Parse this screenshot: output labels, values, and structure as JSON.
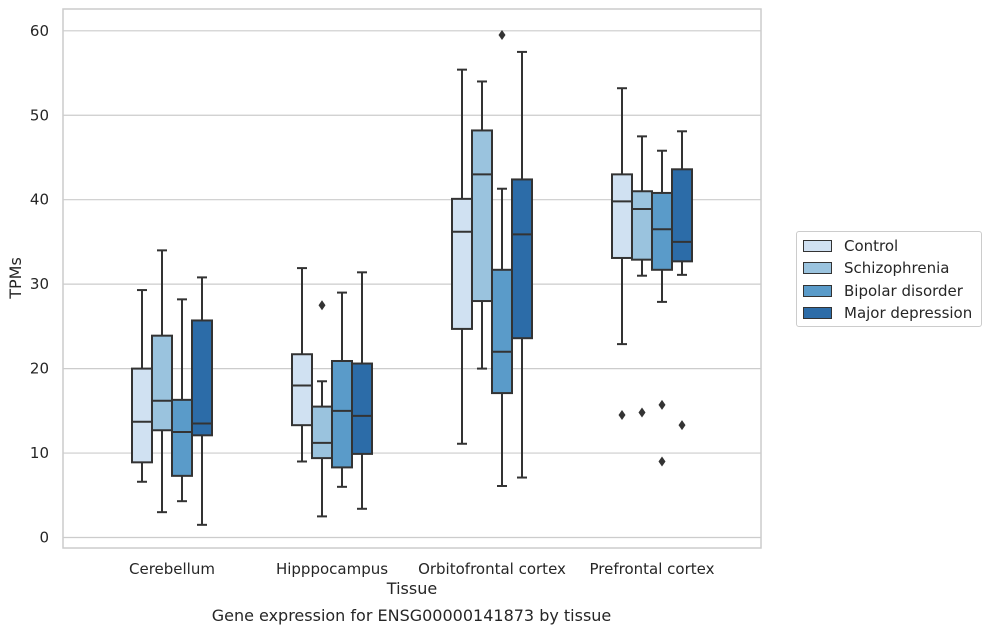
{
  "caption": "Gene expression for ENSG00000141873 by tissue",
  "chart_data": {
    "type": "box",
    "xlabel": "Tissue",
    "ylabel": "TPMs",
    "ylim": [
      -1.2,
      62.5
    ],
    "yticks": [
      0,
      10,
      20,
      30,
      40,
      50,
      60
    ],
    "grid": "horizontal",
    "legend_position": "right",
    "categories": [
      "Cerebellum",
      "Hipppocampus",
      "Orbitofrontal cortex",
      "Prefrontal cortex"
    ],
    "series": [
      {
        "name": "Control",
        "color": "#d0e1f2",
        "boxes": [
          {
            "whislo": 6.6,
            "q1": 8.9,
            "med": 13.7,
            "q3": 20.0,
            "whishi": 29.3,
            "fliers": []
          },
          {
            "whislo": 9.0,
            "q1": 13.3,
            "med": 18.0,
            "q3": 21.7,
            "whishi": 31.9,
            "fliers": []
          },
          {
            "whislo": 11.1,
            "q1": 24.7,
            "med": 36.2,
            "q3": 40.1,
            "whishi": 55.4,
            "fliers": []
          },
          {
            "whislo": 22.9,
            "q1": 33.1,
            "med": 39.8,
            "q3": 43.0,
            "whishi": 53.2,
            "fliers": [
              14.5
            ]
          }
        ]
      },
      {
        "name": "Schizophrenia",
        "color": "#9ac3de",
        "boxes": [
          {
            "whislo": 3.0,
            "q1": 12.7,
            "med": 16.2,
            "q3": 23.9,
            "whishi": 34.0,
            "fliers": []
          },
          {
            "whislo": 2.5,
            "q1": 9.4,
            "med": 11.2,
            "q3": 15.5,
            "whishi": 18.5,
            "fliers": [
              27.5
            ]
          },
          {
            "whislo": 20.0,
            "q1": 28.0,
            "med": 43.0,
            "q3": 48.2,
            "whishi": 54.0,
            "fliers": []
          },
          {
            "whislo": 31.0,
            "q1": 32.9,
            "med": 38.9,
            "q3": 41.0,
            "whishi": 47.5,
            "fliers": [
              14.8
            ]
          }
        ]
      },
      {
        "name": "Bipolar disorder",
        "color": "#5a9bc9",
        "boxes": [
          {
            "whislo": 4.3,
            "q1": 7.3,
            "med": 12.5,
            "q3": 16.3,
            "whishi": 28.2,
            "fliers": []
          },
          {
            "whislo": 6.0,
            "q1": 8.3,
            "med": 15.0,
            "q3": 20.9,
            "whishi": 29.0,
            "fliers": []
          },
          {
            "whislo": 6.1,
            "q1": 17.1,
            "med": 22.0,
            "q3": 31.7,
            "whishi": 41.3,
            "fliers": [
              59.5
            ]
          },
          {
            "whislo": 27.9,
            "q1": 31.7,
            "med": 36.5,
            "q3": 40.8,
            "whishi": 45.8,
            "fliers": [
              15.7,
              9.0
            ]
          }
        ]
      },
      {
        "name": "Major depression",
        "color": "#2c6ca8",
        "boxes": [
          {
            "whislo": 1.5,
            "q1": 12.1,
            "med": 13.5,
            "q3": 25.7,
            "whishi": 30.8,
            "fliers": []
          },
          {
            "whislo": 3.4,
            "q1": 9.9,
            "med": 14.4,
            "q3": 20.6,
            "whishi": 31.4,
            "fliers": []
          },
          {
            "whislo": 7.1,
            "q1": 23.6,
            "med": 35.9,
            "q3": 42.4,
            "whishi": 57.5,
            "fliers": []
          },
          {
            "whislo": 31.1,
            "q1": 32.7,
            "med": 35.0,
            "q3": 43.6,
            "whishi": 48.1,
            "fliers": [
              13.3
            ]
          }
        ]
      }
    ]
  }
}
